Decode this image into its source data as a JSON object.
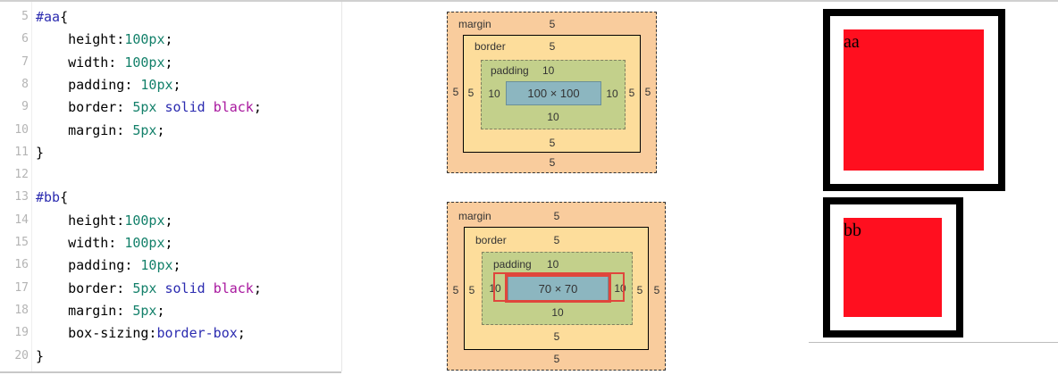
{
  "editor": {
    "lines": [
      {
        "num": "5",
        "parts": [
          {
            "t": "#aa",
            "c": "sel"
          },
          {
            "t": "{",
            "c": ""
          }
        ]
      },
      {
        "num": "6",
        "parts": [
          {
            "t": "    height:",
            "c": ""
          },
          {
            "t": "100px",
            "c": "num"
          },
          {
            "t": ";",
            "c": ""
          }
        ]
      },
      {
        "num": "7",
        "parts": [
          {
            "t": "    width: ",
            "c": ""
          },
          {
            "t": "100px",
            "c": "num"
          },
          {
            "t": ";",
            "c": ""
          }
        ]
      },
      {
        "num": "8",
        "parts": [
          {
            "t": "    padding: ",
            "c": ""
          },
          {
            "t": "10px",
            "c": "num"
          },
          {
            "t": ";",
            "c": ""
          }
        ]
      },
      {
        "num": "9",
        "parts": [
          {
            "t": "    border: ",
            "c": ""
          },
          {
            "t": "5px",
            "c": "num"
          },
          {
            "t": " ",
            "c": ""
          },
          {
            "t": "solid",
            "c": "kw"
          },
          {
            "t": " ",
            "c": ""
          },
          {
            "t": "black",
            "c": "col"
          },
          {
            "t": ";",
            "c": ""
          }
        ]
      },
      {
        "num": "10",
        "parts": [
          {
            "t": "    margin: ",
            "c": ""
          },
          {
            "t": "5px",
            "c": "num"
          },
          {
            "t": ";",
            "c": ""
          }
        ]
      },
      {
        "num": "11",
        "parts": [
          {
            "t": "}",
            "c": ""
          }
        ]
      },
      {
        "num": "12",
        "parts": []
      },
      {
        "num": "13",
        "parts": [
          {
            "t": "#bb",
            "c": "sel"
          },
          {
            "t": "{",
            "c": ""
          }
        ]
      },
      {
        "num": "14",
        "parts": [
          {
            "t": "    height:",
            "c": ""
          },
          {
            "t": "100px",
            "c": "num"
          },
          {
            "t": ";",
            "c": ""
          }
        ]
      },
      {
        "num": "15",
        "parts": [
          {
            "t": "    width: ",
            "c": ""
          },
          {
            "t": "100px",
            "c": "num"
          },
          {
            "t": ";",
            "c": ""
          }
        ]
      },
      {
        "num": "16",
        "parts": [
          {
            "t": "    padding: ",
            "c": ""
          },
          {
            "t": "10px",
            "c": "num"
          },
          {
            "t": ";",
            "c": ""
          }
        ]
      },
      {
        "num": "17",
        "parts": [
          {
            "t": "    border: ",
            "c": ""
          },
          {
            "t": "5px",
            "c": "num"
          },
          {
            "t": " ",
            "c": ""
          },
          {
            "t": "solid",
            "c": "kw"
          },
          {
            "t": " ",
            "c": ""
          },
          {
            "t": "black",
            "c": "col"
          },
          {
            "t": ";",
            "c": ""
          }
        ]
      },
      {
        "num": "18",
        "parts": [
          {
            "t": "    margin: ",
            "c": ""
          },
          {
            "t": "5px",
            "c": "num"
          },
          {
            "t": ";",
            "c": ""
          }
        ]
      },
      {
        "num": "19",
        "parts": [
          {
            "t": "    box-sizing:",
            "c": ""
          },
          {
            "t": "border-box",
            "c": "kw"
          },
          {
            "t": ";",
            "c": ""
          }
        ]
      },
      {
        "num": "20",
        "parts": [
          {
            "t": "}",
            "c": ""
          }
        ]
      }
    ]
  },
  "boxmodel_aa": {
    "margin_label": "margin",
    "margin_top": "5",
    "margin_bottom": "5",
    "margin_left": "5",
    "margin_right": "5",
    "border_label": "border",
    "border_top": "5",
    "border_bottom": "5",
    "border_left": "5",
    "border_right": "5",
    "padding_label": "padding",
    "padding_top": "10",
    "padding_bottom": "10",
    "padding_left": "10",
    "padding_right": "10",
    "content": "100 × 100"
  },
  "boxmodel_bb": {
    "margin_label": "margin",
    "margin_top": "5",
    "margin_bottom": "5",
    "margin_left": "5",
    "margin_right": "5",
    "border_label": "border",
    "border_top": "5",
    "border_bottom": "5",
    "border_left": "5",
    "border_right": "5",
    "padding_label": "padding",
    "padding_top": "10",
    "padding_bottom": "10",
    "padding_left": "10",
    "padding_right": "10",
    "content": "70 × 70"
  },
  "result": {
    "aa_label": "aa",
    "bb_label": "bb"
  },
  "colors": {
    "margin": "#f9cc9d",
    "border": "#fddd9b",
    "padding": "#c3d08b",
    "content": "#8cb6c0",
    "highlight": "#e0463c",
    "box_fill": "#ff0f1f"
  }
}
